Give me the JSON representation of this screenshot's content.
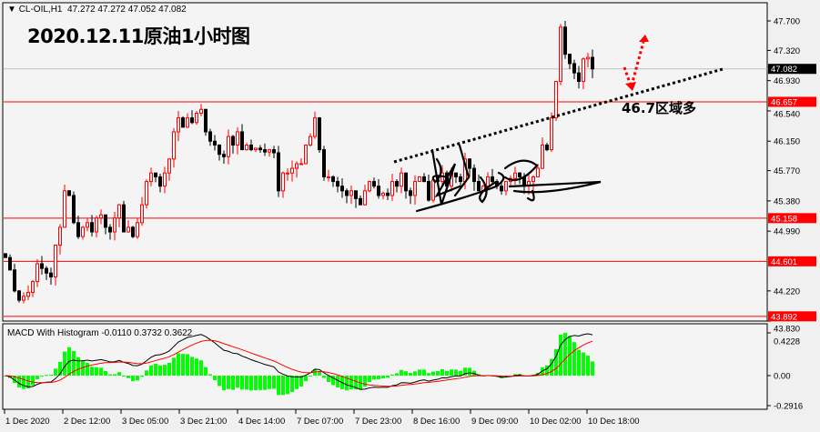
{
  "header": {
    "symbol": "CL-OIL,H1",
    "ohlc": "47.272 47.272 47.052 47.082",
    "dropdown_icon": "triangle-down-icon"
  },
  "annotation": {
    "title": "2020.12.11原油1小时图",
    "zone_note": "46.7区域多",
    "signature": "handwritten signature"
  },
  "colors": {
    "background": "#f4f4f4",
    "bull": "#ff0000",
    "bear": "#000000",
    "level_line": "#ff0000",
    "macd_line": "#000000",
    "signal_line": "#ff0000",
    "histogram": "#00ff00"
  },
  "price_axis": {
    "ticks": [
      "47.700",
      "47.320",
      "46.930",
      "46.540",
      "46.150",
      "45.770",
      "45.380",
      "44.990",
      "44.220",
      "43.830"
    ],
    "current_price": "47.082",
    "levels": [
      "46.657",
      "45.158",
      "44.601",
      "43.892"
    ]
  },
  "macd": {
    "label": "MACD With Histogram -0.0110 0.3732 0.3622",
    "ticks": [
      "0.4228",
      "0.00",
      "-0.2916"
    ]
  },
  "time_axis": [
    "1 Dec 2020",
    "2 Dec 12:00",
    "3 Dec 05:00",
    "3 Dec 21:00",
    "4 Dec 14:00",
    "7 Dec 07:00",
    "7 Dec 23:00",
    "8 Dec 16:00",
    "9 Dec 09:00",
    "10 Dec 02:00",
    "10 Dec 18:00"
  ],
  "chart_data": {
    "type": "candlestick",
    "ylim": [
      43.83,
      47.8
    ],
    "levels": [
      46.657,
      45.158,
      44.601,
      43.892
    ],
    "current": 47.082,
    "trendline_from": [
      45.81,
      47.0
    ],
    "closes": [
      44.65,
      44.49,
      44.22,
      44.1,
      44.15,
      44.2,
      44.34,
      44.57,
      44.51,
      44.45,
      44.4,
      44.81,
      45.04,
      45.51,
      45.45,
      45.1,
      44.92,
      45.04,
      45.1,
      44.98,
      45.16,
      45.2,
      45.04,
      44.98,
      45.16,
      45.33,
      44.98,
      45.04,
      44.92,
      45.1,
      45.33,
      45.63,
      45.74,
      45.69,
      45.57,
      45.74,
      45.92,
      46.27,
      46.45,
      46.33,
      46.45,
      46.39,
      46.51,
      46.56,
      46.27,
      46.15,
      46.1,
      45.98,
      45.95,
      46.21,
      46.1,
      46.27,
      46.04,
      46.1,
      46.04,
      46.06,
      46.04,
      46.01,
      46.04,
      46.0,
      45.51,
      45.74,
      45.74,
      45.8,
      45.86,
      45.86,
      46.1,
      46.21,
      46.45,
      46.04,
      45.69,
      45.69,
      45.63,
      45.57,
      45.51,
      45.45,
      45.51,
      45.41,
      45.33,
      45.51,
      45.63,
      45.57,
      45.45,
      45.48,
      45.45,
      45.63,
      45.57,
      45.74,
      45.51,
      45.45,
      45.63,
      45.69,
      45.63,
      45.39,
      45.65,
      45.63,
      45.74,
      45.57,
      45.74,
      45.69,
      45.63,
      45.92,
      45.8,
      45.63,
      45.51,
      45.57,
      45.69,
      45.63,
      45.57,
      45.51,
      45.63,
      45.67,
      45.74,
      45.69,
      45.57,
      45.63,
      45.69,
      45.8,
      46.1,
      46.04,
      46.45,
      46.92,
      47.62,
      47.27,
      47.15,
      47.03,
      46.92,
      47.21,
      47.23,
      47.082
    ]
  }
}
